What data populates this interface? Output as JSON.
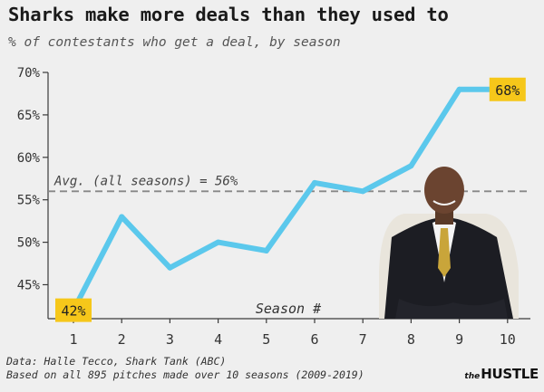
{
  "title": "Sharks make more deals than they used to",
  "subtitle": "% of contestants who get a deal, by season",
  "footer": {
    "line1": "Data: Halle Tecco, Shark Tank (ABC)",
    "line2": "Based on all 895 pitches made over 10 seasons (2009-2019)"
  },
  "brand": {
    "prefix": "the",
    "name": "HUSTLE"
  },
  "chart_data": {
    "type": "line",
    "title": "Sharks make more deals than they used to",
    "xlabel": "Season #",
    "ylabel": "",
    "x": [
      1,
      2,
      3,
      4,
      5,
      6,
      7,
      8,
      9,
      10
    ],
    "series": [
      {
        "values": [
          42,
          53,
          47,
          50,
          49,
          57,
          56,
          59,
          68,
          68
        ]
      }
    ],
    "ylim": [
      41,
      70
    ],
    "yticks": [
      45,
      50,
      55,
      60,
      65,
      70
    ],
    "ytick_labels": [
      "45%",
      "50%",
      "55%",
      "60%",
      "65%",
      "70%"
    ],
    "xtick_labels": [
      "1",
      "2",
      "3",
      "4",
      "5",
      "6",
      "7",
      "8",
      "9",
      "10"
    ],
    "reference_line": {
      "value": 56,
      "label": "Avg. (all seasons) = 56%"
    },
    "callouts": [
      {
        "x": 1,
        "label": "42%"
      },
      {
        "x": 10,
        "label": "68%"
      }
    ],
    "grid": false,
    "colors": {
      "line": "#5bc8ec",
      "axis": "#3a3a3a",
      "reference": "#888888",
      "callout_bg": "#f6c71a",
      "background": "#efefef"
    },
    "photo": "person-photo"
  }
}
